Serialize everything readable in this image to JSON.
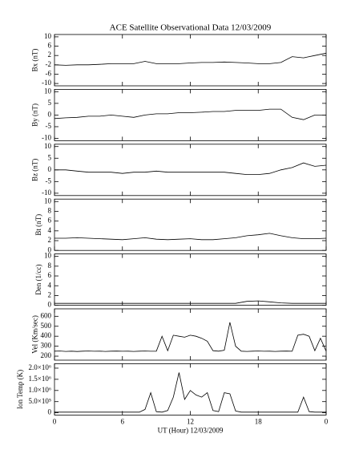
{
  "chart_data": [
    {
      "type": "line",
      "title": "ACE Satellite Observational Data   12/03/2009",
      "ylabel": "Bx (nT)",
      "ylim": [
        -11,
        11
      ],
      "yticks": [
        -10,
        -6,
        -2,
        2,
        6,
        10
      ],
      "series": [
        {
          "color": "#000000",
          "x": [
            0,
            1,
            2,
            3,
            4,
            5,
            6,
            7,
            8,
            9,
            10,
            11,
            12,
            13,
            14,
            15,
            16,
            17,
            18,
            19,
            20,
            21,
            22,
            23,
            24
          ],
          "values": [
            -2,
            -2.2,
            -2,
            -2,
            -1.8,
            -1.5,
            -1.5,
            -1.5,
            -0.5,
            -1.5,
            -1.5,
            -1.5,
            -1.2,
            -1,
            -1,
            -0.8,
            -1,
            -1.2,
            -1.5,
            -1.5,
            -1,
            1.5,
            1,
            2,
            3
          ]
        }
      ]
    },
    {
      "type": "line",
      "ylabel": "By (nT)",
      "ylim": [
        -11,
        11
      ],
      "yticks": [
        -10,
        -5,
        0,
        5,
        10
      ],
      "series": [
        {
          "color": "#000000",
          "x": [
            0,
            1,
            2,
            3,
            4,
            5,
            6,
            7,
            8,
            9,
            10,
            11,
            12,
            13,
            14,
            15,
            16,
            17,
            18,
            19,
            20,
            21,
            22,
            23,
            24
          ],
          "values": [
            -1.5,
            -1.2,
            -1,
            -0.5,
            -0.5,
            0,
            -0.5,
            -1,
            0,
            0.5,
            0.5,
            1,
            1,
            1.2,
            1.5,
            1.5,
            2,
            2,
            2,
            2.5,
            2.5,
            -1,
            -2,
            0,
            0
          ]
        }
      ]
    },
    {
      "type": "line",
      "ylabel": "Bz (nT)",
      "ylim": [
        -11,
        11
      ],
      "yticks": [
        -10,
        -5,
        0,
        5,
        10
      ],
      "series": [
        {
          "color": "#000000",
          "x": [
            0,
            1,
            2,
            3,
            4,
            5,
            6,
            7,
            8,
            9,
            10,
            11,
            12,
            13,
            14,
            15,
            16,
            17,
            18,
            19,
            20,
            21,
            22,
            23,
            24
          ],
          "values": [
            0,
            0,
            -0.5,
            -1,
            -1,
            -1,
            -1.5,
            -1,
            -1,
            -0.5,
            -1,
            -1,
            -1,
            -1,
            -1,
            -1,
            -1.5,
            -2,
            -2,
            -1.5,
            0,
            1,
            3,
            1.5,
            2
          ]
        }
      ]
    },
    {
      "type": "line",
      "ylabel": "Bt (nT)",
      "ylim": [
        0,
        10.5
      ],
      "yticks": [
        0,
        2,
        4,
        6,
        8,
        10
      ],
      "series": [
        {
          "color": "#000000",
          "x": [
            0,
            1,
            2,
            3,
            4,
            5,
            6,
            7,
            8,
            9,
            10,
            11,
            12,
            13,
            14,
            15,
            16,
            17,
            18,
            19,
            20,
            21,
            22,
            23,
            24
          ],
          "values": [
            2.5,
            2.5,
            2.6,
            2.5,
            2.4,
            2.3,
            2.2,
            2.4,
            2.6,
            2.3,
            2.2,
            2.3,
            2.4,
            2.2,
            2.2,
            2.4,
            2.6,
            3,
            3.2,
            3.5,
            3,
            2.6,
            2.4,
            2.4,
            2.5
          ]
        }
      ]
    },
    {
      "type": "line",
      "ylabel": "Den (1/cc)",
      "ylim": [
        0,
        10.5
      ],
      "yticks": [
        0,
        2,
        4,
        6,
        8,
        10
      ],
      "series": [
        {
          "color": "#000000",
          "x": [
            0,
            1,
            2,
            3,
            4,
            5,
            6,
            7,
            8,
            9,
            10,
            11,
            12,
            13,
            14,
            15,
            16,
            17,
            18,
            19,
            20,
            21,
            22,
            23,
            24
          ],
          "values": [
            0.4,
            0.4,
            0.4,
            0.4,
            0.4,
            0.4,
            0.4,
            0.4,
            0.4,
            0.4,
            0.4,
            0.4,
            0.4,
            0.4,
            0.4,
            0.4,
            0.4,
            0.8,
            0.9,
            0.7,
            0.5,
            0.4,
            0.4,
            0.4,
            0.4
          ]
        }
      ]
    },
    {
      "type": "line",
      "ylabel": "Vel (Km/sec)",
      "ylim": [
        160,
        675
      ],
      "yticks": [
        200,
        300,
        400,
        500,
        600
      ],
      "series": [
        {
          "color": "#000000",
          "x": [
            0,
            0.5,
            1,
            1.5,
            2,
            2.5,
            3,
            3.5,
            4,
            4.5,
            5,
            5.5,
            6,
            6.5,
            7,
            7.5,
            8,
            8.5,
            9,
            9.5,
            10,
            10.5,
            11,
            11.5,
            12,
            12.5,
            13,
            13.5,
            14,
            14.5,
            15,
            15.5,
            16,
            16.5,
            17,
            17.5,
            18,
            18.5,
            19,
            19.5,
            20,
            20.5,
            21,
            21.5,
            22,
            22.5,
            23,
            23.5,
            24
          ],
          "values": [
            250,
            252,
            248,
            250,
            247,
            250,
            252,
            249,
            250,
            248,
            250,
            251,
            249,
            250,
            248,
            250,
            252,
            249,
            250,
            400,
            255,
            410,
            400,
            390,
            410,
            400,
            380,
            350,
            255,
            250,
            260,
            540,
            300,
            250,
            248,
            250,
            252,
            249,
            250,
            248,
            250,
            251,
            249,
            410,
            420,
            400,
            255,
            380,
            250
          ]
        }
      ]
    },
    {
      "type": "line",
      "ylabel": "Ion Temp (K)",
      "ylim": [
        -100000,
        2200000
      ],
      "yticks": [
        0,
        {
          "value": 500000,
          "label": "5.0×10⁵"
        },
        {
          "value": 1000000,
          "label": "1.0×10⁶"
        },
        {
          "value": 1500000,
          "label": "1.5×10⁶"
        },
        {
          "value": 2000000,
          "label": "2.0×10⁶"
        }
      ],
      "xlabel": "UT (Hour)  12/03/2009",
      "xlim": [
        0,
        24
      ],
      "xticks": [
        0,
        6,
        12,
        18,
        {
          "value": 24,
          "label": "0"
        }
      ],
      "series": [
        {
          "color": "#000000",
          "x": [
            0,
            0.5,
            1,
            1.5,
            2,
            2.5,
            3,
            3.5,
            4,
            4.5,
            5,
            5.5,
            6,
            6.5,
            7,
            7.5,
            8,
            8.5,
            9,
            9.5,
            10,
            10.5,
            11,
            11.5,
            12,
            12.5,
            13,
            13.5,
            14,
            14.5,
            15,
            15.5,
            16,
            16.5,
            17,
            17.5,
            18,
            18.5,
            19,
            19.5,
            20,
            20.5,
            21,
            21.5,
            22,
            22.5,
            23,
            23.5,
            24
          ],
          "values": [
            30000,
            30000,
            30000,
            30000,
            30000,
            30000,
            30000,
            30000,
            30000,
            30000,
            30000,
            30000,
            30000,
            30000,
            30000,
            30000,
            150000,
            900000,
            50000,
            30000,
            100000,
            700000,
            1800000,
            600000,
            1000000,
            800000,
            700000,
            900000,
            100000,
            50000,
            900000,
            850000,
            80000,
            30000,
            30000,
            30000,
            30000,
            30000,
            30000,
            30000,
            30000,
            30000,
            30000,
            30000,
            700000,
            50000,
            30000,
            30000,
            30000
          ]
        }
      ]
    }
  ]
}
